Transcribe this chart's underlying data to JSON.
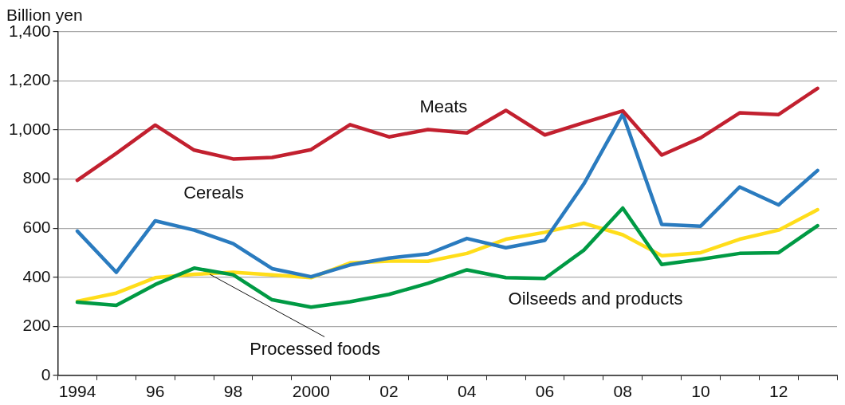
{
  "chart_data": {
    "type": "line",
    "ylabel": "Billion yen",
    "categories": [
      "1994",
      null,
      "96",
      null,
      "98",
      null,
      "2000",
      null,
      "02",
      null,
      "04",
      null,
      "06",
      null,
      "08",
      null,
      "10",
      null,
      "12",
      null
    ],
    "series": [
      {
        "name": "Meats",
        "color": "#c2202f",
        "values": [
          795,
          905,
          1020,
          918,
          882,
          888,
          920,
          1022,
          972,
          1002,
          988,
          1080,
          980,
          1030,
          1078,
          898,
          968,
          1070,
          1063,
          1170
        ]
      },
      {
        "name": "Cereals",
        "color": "#2a7bbf",
        "values": [
          588,
          420,
          630,
          592,
          537,
          435,
          402,
          450,
          478,
          495,
          558,
          520,
          550,
          780,
          1065,
          615,
          608,
          768,
          695,
          835
        ]
      },
      {
        "name": "Oilseeds and products",
        "color": "#009a44",
        "values": [
          298,
          285,
          370,
          437,
          410,
          308,
          278,
          300,
          330,
          375,
          430,
          398,
          395,
          510,
          682,
          452,
          473,
          497,
          500,
          610
        ]
      },
      {
        "name": "Processed foods",
        "color": "#ffdd1a",
        "values": [
          302,
          335,
          398,
          412,
          420,
          410,
          398,
          458,
          466,
          465,
          497,
          555,
          583,
          620,
          573,
          488,
          500,
          555,
          592,
          675
        ]
      }
    ],
    "ylim": [
      0,
      1400
    ],
    "yticks": [
      0,
      200,
      400,
      600,
      800,
      {
        "value": 1000,
        "label": "1,000"
      },
      {
        "value": 1200,
        "label": "1,200"
      },
      {
        "value": 1400,
        "label": "1,400"
      }
    ],
    "grid": "y",
    "legend": false,
    "marker": "none",
    "line_style": "solid"
  }
}
